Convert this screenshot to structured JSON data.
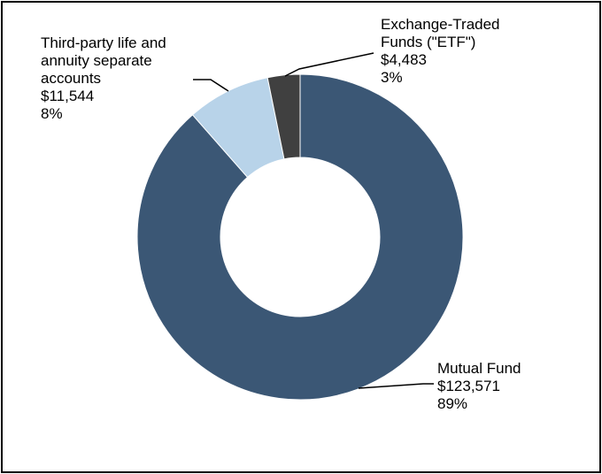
{
  "chart_data": {
    "type": "pie",
    "donut": true,
    "slices": [
      {
        "label_lines": [
          "Mutual Fund"
        ],
        "value": 123571,
        "value_text": "$123,571",
        "percent_text": "89%",
        "color": "#3b5775"
      },
      {
        "label_lines": [
          "Third-party life and",
          "annuity separate",
          "accounts"
        ],
        "value": 11544,
        "value_text": "$11,544",
        "percent_text": "8%",
        "color": "#b8d3e9"
      },
      {
        "label_lines": [
          "Exchange-Traded",
          "Funds (\"ETF\")"
        ],
        "value": 4483,
        "value_text": "$4,483",
        "percent_text": "3%",
        "color": "#404040"
      }
    ]
  }
}
